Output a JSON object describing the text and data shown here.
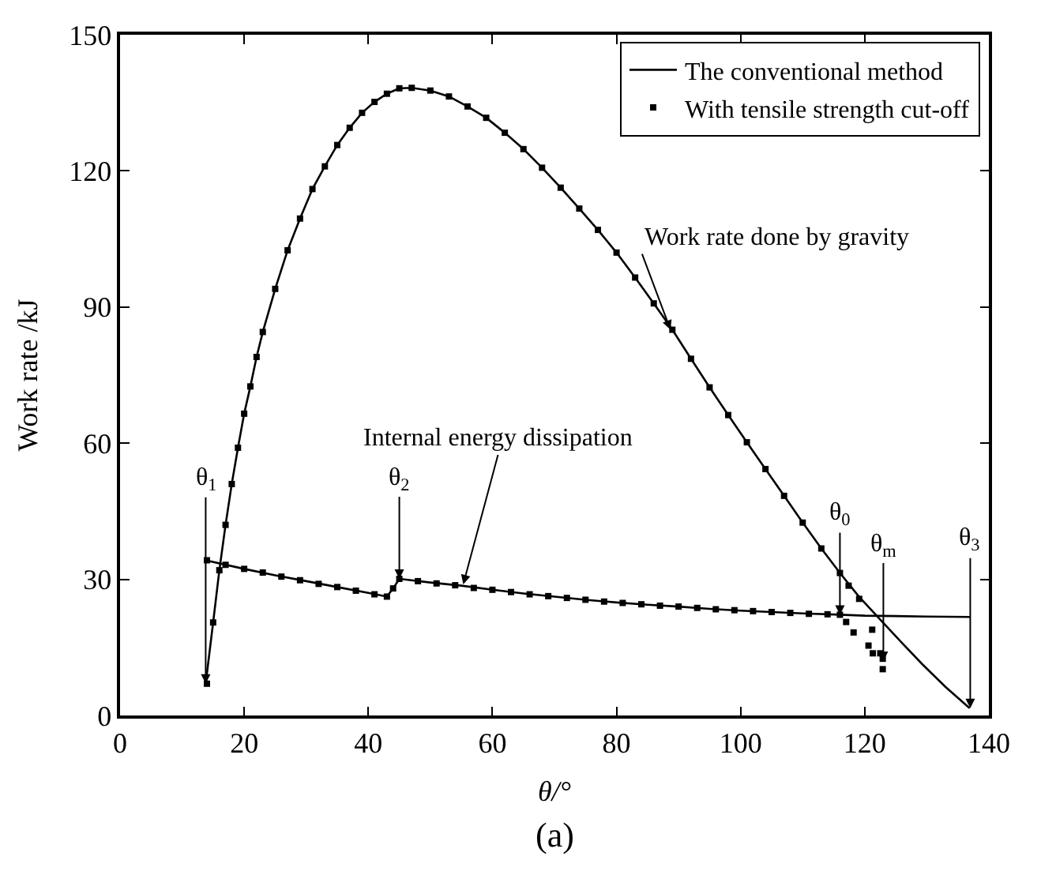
{
  "chart_data": {
    "type": "line",
    "xlabel": "θ/°",
    "ylabel": "Work rate /kJ",
    "xlim": [
      0,
      140
    ],
    "xticks": [
      0,
      20,
      40,
      60,
      80,
      100,
      120,
      140
    ],
    "ylim": [
      0,
      150
    ],
    "yticks": [
      0,
      30,
      60,
      90,
      120,
      150
    ],
    "legend": "top right",
    "series": [
      {
        "name": "The conventional method",
        "color": "#000000",
        "marker": "none",
        "line_style": "solid",
        "x": [
          13.8,
          15,
          16,
          17,
          18,
          19,
          20,
          21,
          22,
          23,
          25,
          27,
          29,
          31,
          33,
          35,
          37,
          39,
          41,
          43,
          45,
          47,
          50,
          53,
          56,
          59,
          62,
          65,
          68,
          71,
          74,
          77,
          80,
          83,
          86,
          89,
          92,
          95,
          98,
          101,
          104,
          107,
          110,
          113,
          116,
          119,
          122.5,
          126,
          129.2,
          133,
          136.9
        ],
        "values": [
          7,
          20.5,
          32,
          42,
          51,
          59,
          66.5,
          72.5,
          79,
          84.5,
          94,
          102.5,
          109.5,
          116,
          121,
          125.7,
          129.5,
          132.8,
          135.2,
          137,
          138.2,
          138.3,
          137.7,
          136.4,
          134.2,
          131.7,
          128.4,
          124.8,
          120.7,
          116.3,
          111.7,
          107,
          102,
          96.5,
          90.8,
          85,
          78.6,
          72.3,
          66.2,
          60.2,
          54.3,
          48.4,
          42.5,
          36.8,
          31.4,
          26.3,
          21.1,
          16,
          11.4,
          6.3,
          1.6
        ]
      },
      {
        "color": "#000000",
        "marker": "none",
        "line_style": "solid",
        "x": [
          13.8,
          20,
          25,
          30,
          35,
          40,
          43,
          44,
          45,
          50,
          55,
          60,
          65,
          70,
          75,
          80,
          85,
          90,
          95,
          100,
          105,
          110,
          116,
          120,
          125,
          130,
          137
        ],
        "values": [
          34.2,
          32.3,
          30.9,
          29.6,
          28.3,
          27,
          26.2,
          28,
          30.1,
          29.3,
          28.6,
          27.7,
          26.9,
          26.2,
          25.5,
          24.9,
          24.4,
          24,
          23.5,
          23.1,
          22.8,
          22.5,
          22.2,
          22,
          21.9,
          21.8,
          21.7
        ]
      },
      {
        "name": "With tensile strength cut-off",
        "type": "scatter",
        "color": "#000000",
        "marker": "square",
        "x": [
          14,
          15,
          16,
          17,
          18,
          19,
          20,
          21,
          22,
          23,
          25,
          27,
          29,
          31,
          33,
          35,
          37,
          39,
          41,
          43,
          45,
          47,
          50,
          53,
          56,
          59,
          62,
          65,
          68,
          71,
          74,
          77,
          80,
          83,
          86,
          89,
          92,
          95,
          98,
          101,
          104,
          107,
          110,
          113,
          116,
          117.4,
          119.1,
          121.2,
          122.5,
          122.9
        ],
        "values": [
          7,
          20.5,
          32,
          42,
          51,
          59,
          66.5,
          72.5,
          79,
          84.5,
          94,
          102.5,
          109.5,
          116,
          121,
          125.7,
          129.5,
          132.8,
          135.2,
          137,
          138.2,
          138.3,
          137.7,
          136.4,
          134.2,
          131.7,
          128.4,
          124.8,
          120.7,
          116.3,
          111.7,
          107,
          102,
          96.5,
          90.8,
          85,
          78.6,
          72.3,
          66.2,
          60.2,
          54.3,
          48.4,
          42.5,
          36.8,
          31.4,
          28.6,
          25.7,
          18.9,
          13.7,
          10.2
        ]
      },
      {
        "type": "scatter",
        "color": "#000000",
        "marker": "square",
        "x": [
          14,
          17,
          20,
          23,
          26,
          29,
          32,
          35,
          38,
          41,
          43,
          44,
          45,
          48,
          51,
          54,
          57,
          60,
          63,
          66,
          69,
          72,
          75,
          78,
          81,
          84,
          87,
          90,
          93,
          96,
          99,
          102,
          105,
          108,
          111,
          114,
          116,
          117,
          118.2,
          120.6,
          121.3,
          122.9
        ],
        "values": [
          34.2,
          33.2,
          32.3,
          31.5,
          30.6,
          29.8,
          29,
          28.3,
          27.5,
          26.7,
          26.2,
          28,
          30.1,
          29.6,
          29.1,
          28.7,
          28.1,
          27.7,
          27.2,
          26.7,
          26.3,
          25.9,
          25.5,
          25.1,
          24.8,
          24.5,
          24.2,
          24,
          23.7,
          23.4,
          23.2,
          23,
          22.8,
          22.6,
          22.4,
          22.3,
          22.2,
          20.6,
          18.3,
          15.4,
          13.7,
          12.5
        ]
      }
    ],
    "annotations": [
      {
        "text": "θ$_{1}$",
        "x": 13.8,
        "y": 7
      },
      {
        "text": "θ$_{2}$",
        "x": 45,
        "y": 30.1
      },
      {
        "text": "θ$_{0}$",
        "x": 116,
        "y": 22.2
      },
      {
        "text": "θ$_{m}$",
        "x": 123,
        "y": 12
      },
      {
        "text": "θ$_{3}$",
        "x": 137,
        "y": 1.6
      },
      {
        "text": "Work rate done by gravity",
        "x": 88.7,
        "y": 85
      },
      {
        "text": "Internal energy dissipation",
        "x": 55.3,
        "y": 28.9
      },
      "(a)"
    ]
  }
}
